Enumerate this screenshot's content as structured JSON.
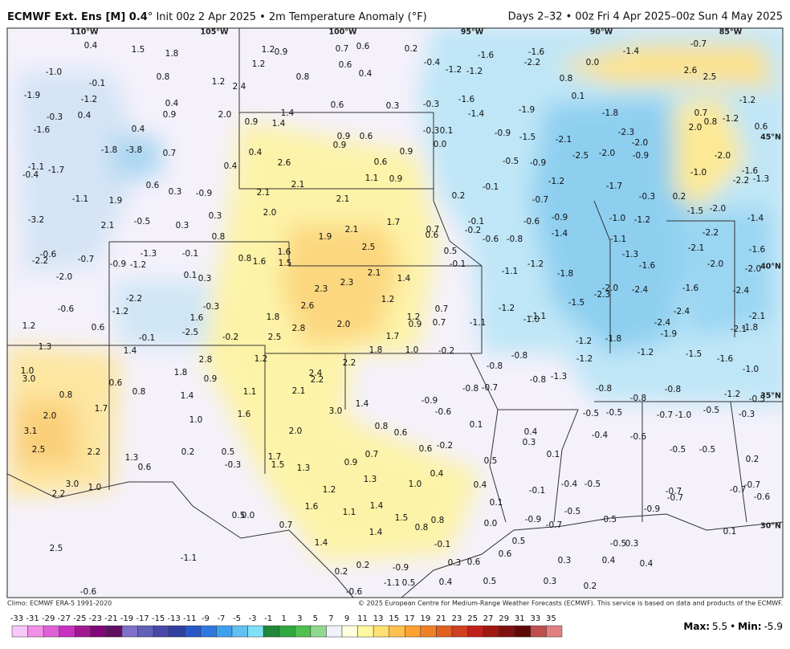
{
  "header": {
    "title_bold": "ECMWF Ext. Ens [M] 0.4",
    "title_rest": "° Init 00z 2 Apr 2025 • 2m Temperature Anomaly (°F)",
    "title_right": "Days 2–32 • 00z Fri 4 Apr 2025–00z Sun 4 May 2025"
  },
  "map": {
    "longitude_labels": [
      "110°W",
      "105°W",
      "100°W",
      "95°W",
      "90°W",
      "85°W"
    ],
    "latitude_labels": [
      "45°N",
      "40°N",
      "35°N",
      "30°N"
    ],
    "anomalies": [
      0.4,
      1.5,
      1.8,
      1.2,
      0.9,
      0.7,
      0.6,
      0.2,
      {
        "value": -1,
        "label": "-1.0"
      },
      -0.1,
      0.8,
      1.2,
      2.4,
      1.2,
      0.8,
      0.6,
      0.4,
      -1.9,
      -1.2,
      0.4,
      0.6,
      0.3,
      -0.3,
      -0.4,
      -1.2,
      -1.2,
      -1.6,
      -2.2,
      -1.6,
      {
        "value": 0,
        "label": "0.0"
      },
      0.8,
      0.1,
      -1.4,
      -0.7,
      2.6,
      2.5,
      -0.3,
      0.4,
      0.9,
      {
        "value": 2,
        "label": "2.0"
      },
      1.4,
      0.9,
      1.4,
      -1.6,
      -1.4,
      -1.9,
      -1.8,
      0.7,
      -1.2,
      -1.6,
      0.4,
      0.9,
      0.6,
      0.9,
      -0.3,
      0.1,
      {
        "value": 0,
        "label": "0.0"
      },
      -0.9,
      -1.5,
      -2.1,
      -2.3,
      {
        "value": -2,
        "label": "-2.0"
      },
      {
        "value": 2,
        "label": "2.0"
      },
      0.8,
      -1.2,
      0.6,
      -1.1,
      -0.4,
      -1.7,
      -1.8,
      -3.8,
      0.7,
      0.4,
      2.6,
      0.4,
      0.6,
      0.9,
      -0.5,
      -0.9,
      -2.5,
      {
        "value": -2,
        "label": "-2.0"
      },
      -0.9,
      {
        "value": -2,
        "label": "-2.0"
      },
      {
        "value": -1,
        "label": "-1.0"
      },
      -1.6,
      -2.2,
      -1.3,
      0.6,
      0.3,
      -0.9,
      -1.1,
      1.9,
      2.1,
      2.1,
      1.1,
      0.9,
      0.2,
      -0.1,
      -1.2,
      -0.7,
      -1.7,
      -0.3,
      0.2,
      -1.5,
      {
        "value": -2,
        "label": "-2.0"
      },
      -1.4,
      -3.2,
      2.1,
      -0.5,
      0.3,
      0.3,
      {
        "value": 2,
        "label": "2.0"
      },
      2.1,
      1.7,
      2.1,
      1.9,
      2.5,
      0.7,
      0.6,
      -0.1,
      -0.2,
      -0.6,
      -0.8,
      -0.6,
      -0.9,
      -1.4,
      {
        "value": -1,
        "label": "-1.0"
      },
      -1.2,
      -1.1,
      -2.2,
      0.8,
      -2.1,
      -1.6,
      -2.2,
      -0.6,
      -0.7,
      -0.9,
      -1.2,
      -1.3,
      -0.1,
      0.8,
      1.6,
      1.6,
      1.5,
      0.5,
      -0.1,
      -1.2,
      -1.1,
      -1.8,
      -1.3,
      -1.6,
      {
        "value": -2,
        "label": "-2.0"
      },
      {
        "value": -2,
        "label": "-2.0"
      },
      {
        "value": -2,
        "label": "-2.0"
      },
      0.1,
      0.3,
      2.1,
      1.4,
      2.3,
      2.3,
      -1.6,
      -2.4,
      -2.3,
      {
        "value": -2,
        "label": "-2.0"
      },
      -2.4,
      -2.2,
      -1.5,
      -0.6,
      -1.2,
      -0.3,
      2.6,
      1.2,
      0.7,
      -1.2,
      -1.1,
      {
        "value": -1,
        "label": "-1.0"
      },
      -2.4,
      1.6,
      1.8,
      1.2,
      0.9,
      0.7,
      -1.1,
      -2.4,
      -2.1,
      -2.1,
      -1.8,
      1.2,
      0.6,
      -2.5,
      -0.1,
      -0.2,
      2.5,
      2.8,
      {
        "value": 2,
        "label": "2.0"
      },
      1.7,
      -1.2,
      -1.8,
      -1.9,
      1.3,
      1.4,
      1.8,
      {
        "value": 1,
        "label": "1.0"
      },
      -0.2,
      -0.8,
      -1.2,
      -1.2,
      -1.5,
      -1.6,
      2.8,
      1.2,
      2.2,
      -0.8,
      -0.8,
      -1.3,
      {
        "value": -1,
        "label": "-1.0"
      },
      {
        "value": 1,
        "label": "1.0"
      },
      {
        "value": 3,
        "label": "3.0"
      },
      1.8,
      0.9,
      2.4,
      2.2,
      0.6,
      -0.8,
      -0.7,
      -0.8,
      -0.8,
      0.8,
      0.8,
      1.4,
      1.1,
      2.1,
      1.4,
      -0.9,
      -0.8,
      -1.2,
      -0.5,
      1.7,
      1.6,
      {
        "value": 3,
        "label": "3.0"
      },
      -0.6,
      -0.5,
      -0.5,
      -0.7,
      {
        "value": -1,
        "label": "-1.0"
      },
      -0.5,
      -0.3,
      {
        "value": 2,
        "label": "2.0"
      },
      {
        "value": 1,
        "label": "1.0"
      },
      0.8,
      0.6,
      0.1,
      0.4,
      3.1,
      {
        "value": 2,
        "label": "2.0"
      },
      -0.4,
      -0.6,
      0.3,
      0.6,
      -0.2,
      2.5,
      2.2,
      0.2,
      0.5,
      1.7,
      0.7,
      0.1,
      -0.5,
      -0.5,
      1.3,
      0.6,
      -0.3,
      1.5,
      0.9,
      0.5,
      0.2,
      1.3,
      0.4,
      1.3,
      {
        "value": 1,
        "label": "1.0"
      },
      0.4,
      {
        "value": 3,
        "label": "3.0"
      },
      {
        "value": 1,
        "label": "1.0"
      },
      2.2,
      1.2,
      -0.1,
      -0.4,
      -0.5,
      -0.7,
      -0.7,
      -0.7,
      -0.6,
      -0.7,
      0.1,
      1.6,
      1.4,
      -0.5,
      -0.9,
      1.1,
      0.5,
      {
        "value": 0,
        "label": "0.0"
      },
      1.5,
      0.8,
      {
        "value": 0,
        "label": "0.0"
      },
      -0.9,
      -0.7,
      -0.5,
      0.7,
      0.8,
      1.4,
      0.1,
      1.4,
      -0.1,
      0.5,
      -0.5,
      0.3,
      2.5,
      0.6,
      -1.1,
      0.3,
      0.6,
      0.3,
      0.4,
      0.4,
      0.2,
      -0.9,
      0.2,
      -1.1,
      0.5,
      0.4,
      0.5,
      0.3,
      0.2,
      -0.6,
      -0.6
    ]
  },
  "footer": {
    "climo": "Climo: ECMWF ERA-5 1991-2020",
    "copyright": "© 2025 European Centre for Medium-Range Weather Forecasts (ECMWF). This service is based on data and products of the ECMWF.",
    "colorbar_ticks": [
      -33,
      -31,
      -29,
      -27,
      -25,
      -23,
      -21,
      -19,
      -17,
      -15,
      -13,
      -11,
      -9,
      -7,
      -5,
      -3,
      -1,
      1,
      3,
      5,
      7,
      9,
      11,
      13,
      15,
      17,
      19,
      21,
      23,
      25,
      27,
      29,
      31,
      33,
      35
    ],
    "max_label": "Max:",
    "max": 5.5,
    "separator": "•",
    "min_label": "Min:",
    "min": -5.9
  }
}
